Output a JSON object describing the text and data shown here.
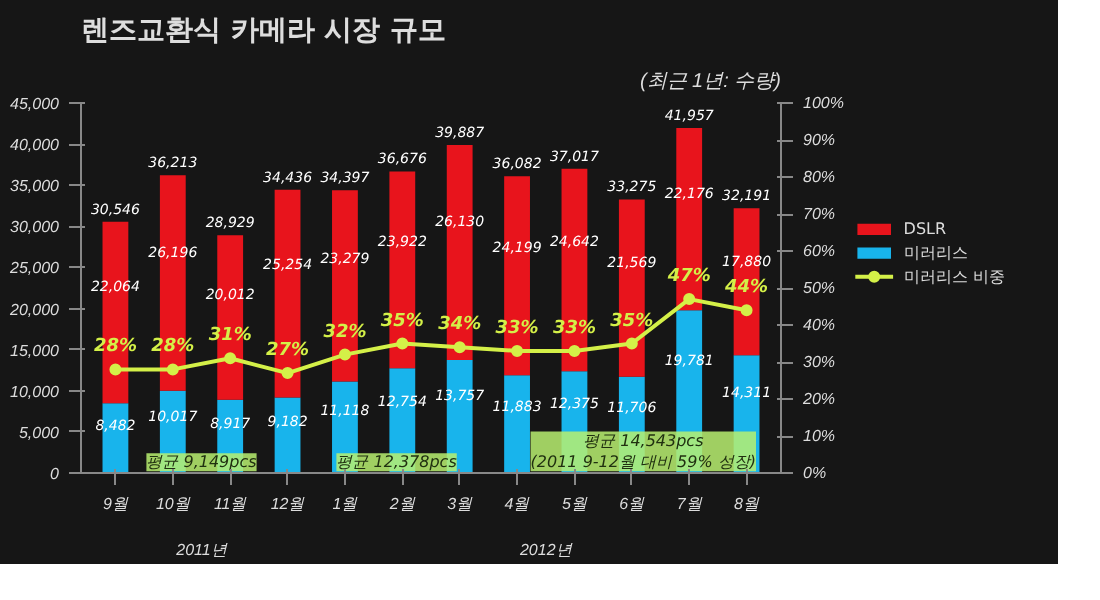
{
  "chart_data": {
    "type": "bar",
    "title": "렌즈교환식 카메라 시장 규모",
    "subtitle": "(최근 1년: 수량)",
    "categories": [
      "9월",
      "10월",
      "11월",
      "12월",
      "1월",
      "2월",
      "3월",
      "4월",
      "5월",
      "6월",
      "7월",
      "8월"
    ],
    "stacked": true,
    "series": [
      {
        "name": "미러리스",
        "color": "#18b4ec",
        "values": [
          8482,
          10017,
          8917,
          9182,
          11118,
          12754,
          13757,
          11883,
          12375,
          11706,
          19781,
          14311
        ],
        "value_labels": [
          "8,482",
          "10,017",
          "8,917",
          "9,182",
          "11,118",
          "12,754",
          "13,757",
          "11,883",
          "12,375",
          "11,706",
          "19,781",
          "14,311"
        ]
      },
      {
        "name": "DSLR",
        "color": "#e8141c",
        "values": [
          22064,
          26196,
          20012,
          25254,
          23279,
          23922,
          26130,
          24199,
          24642,
          21569,
          22176,
          17880
        ],
        "value_labels": [
          "22,064",
          "26,196",
          "20,012",
          "25,254",
          "23,279",
          "23,922",
          "26,130",
          "24,199",
          "24,642",
          "21,569",
          "22,176",
          "17,880"
        ]
      },
      {
        "name": "미러리스 비중",
        "type": "line",
        "axis": "y2",
        "color": "#d4f048",
        "marker": "circle",
        "values": [
          28,
          28,
          31,
          27,
          32,
          35,
          34,
          33,
          33,
          35,
          47,
          44
        ],
        "value_labels": [
          "28%",
          "28%",
          "31%",
          "27%",
          "32%",
          "35%",
          "34%",
          "33%",
          "33%",
          "35%",
          "47%",
          "44%"
        ]
      }
    ],
    "data_labels": true,
    "totals": [
      "30,546",
      "36,213",
      "28,929",
      "34,436",
      "34,397",
      "36,676",
      "39,887",
      "36,082",
      "37,017",
      "33,275",
      "41,957",
      "32,191"
    ],
    "ylim": [
      0,
      45000
    ],
    "yticks": [
      {
        "value": 0,
        "label": "0"
      },
      {
        "value": 5000,
        "label": "5,000"
      },
      {
        "value": 10000,
        "label": "10,000"
      },
      {
        "value": 15000,
        "label": "15,000"
      },
      {
        "value": 20000,
        "label": "20,000"
      },
      {
        "value": 25000,
        "label": "25,000"
      },
      {
        "value": 30000,
        "label": "30,000"
      },
      {
        "value": 35000,
        "label": "35,000"
      },
      {
        "value": 40000,
        "label": "40,000"
      },
      {
        "value": 45000,
        "label": "45,000"
      }
    ],
    "y2lim": [
      0,
      100
    ],
    "y2ticks": [
      {
        "value": 0,
        "label": "0%"
      },
      {
        "value": 10,
        "label": "10%"
      },
      {
        "value": 20,
        "label": "20%"
      },
      {
        "value": 30,
        "label": "30%"
      },
      {
        "value": 40,
        "label": "40%"
      },
      {
        "value": 50,
        "label": "50%"
      },
      {
        "value": 60,
        "label": "60%"
      },
      {
        "value": 70,
        "label": "70%"
      },
      {
        "value": 80,
        "label": "80%"
      },
      {
        "value": 90,
        "label": "90%"
      },
      {
        "value": 100,
        "label": "100%"
      }
    ],
    "annotations": [
      "평균 9,149pcs",
      "평균 12,378pcs",
      "평균 14,543pcs\n(2011 9-12월 대비 59% 성장)",
      "2011년",
      "2012년"
    ],
    "legend": "right",
    "grid": false
  }
}
